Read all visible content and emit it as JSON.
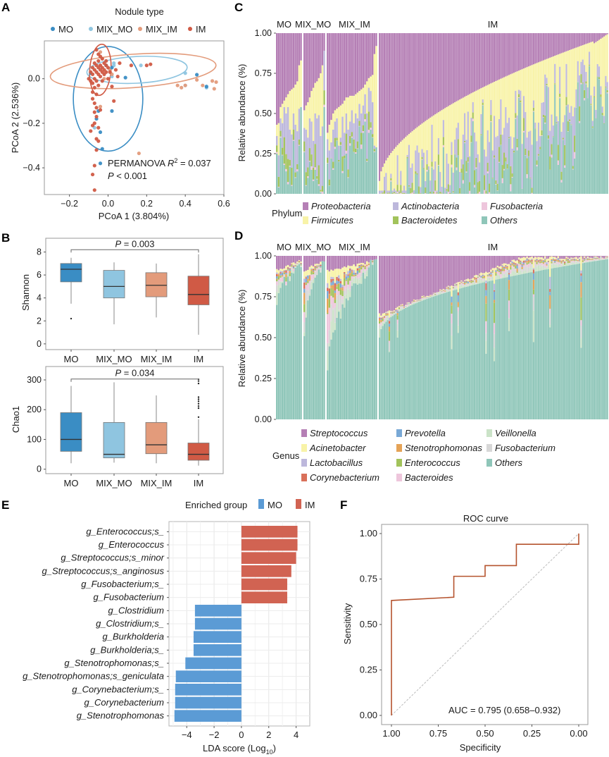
{
  "panel_letters": {
    "a": "A",
    "b": "B",
    "c": "C",
    "d": "D",
    "e": "E",
    "f": "F"
  },
  "colors": {
    "MO": "#3a8dc4",
    "MIX_MO": "#8fc5e0",
    "MIX_IM": "#e39b7b",
    "IM": "#d05a45",
    "enriched_MO": "#5b9bd5",
    "enriched_IM": "#d16352",
    "roc_line": "#b5532e"
  },
  "chart_data": [
    {
      "id": "A",
      "type": "scatter",
      "legend_title": "Nodule type",
      "legend": [
        "MO",
        "MIX_MO",
        "MIX_IM",
        "IM"
      ],
      "legend_placement": "top",
      "xlabel": "PCoA 1 (3.804%)",
      "ylabel": "PCoA 2 (2.536%)",
      "xlim": [
        -0.33,
        0.6
      ],
      "ylim": [
        -0.52,
        0.17
      ],
      "xticks": [
        -0.2,
        0.0,
        0.2,
        0.4,
        0.6
      ],
      "xtick_labels": [
        "−0.2",
        "0.0",
        "0.2",
        "0.4",
        "0.6"
      ],
      "yticks": [
        -0.4,
        -0.2,
        0.0
      ],
      "ytick_labels": [
        "−0.4",
        "−0.2",
        "0.0"
      ],
      "annotation_line1_prefix": "PERMANOVA ",
      "annotation_r": "R",
      "annotation_sup": "2",
      "annotation_line1_suffix": " = 0.037",
      "annotation_line2_p": "P",
      "annotation_line2_rest": " < 0.001",
      "ellipses": [
        {
          "group": "MO",
          "cx": 0.0,
          "cy": -0.09,
          "rx": 0.18,
          "ry": 0.235,
          "angle": 0
        },
        {
          "group": "MIX_MO",
          "cx": 0.15,
          "cy": 0.04,
          "rx": 0.26,
          "ry": 0.06,
          "angle": -3
        },
        {
          "group": "MIX_IM",
          "cx": 0.13,
          "cy": 0.035,
          "rx": 0.43,
          "ry": 0.075,
          "angle": -4
        },
        {
          "group": "IM",
          "cx": -0.04,
          "cy": 0.04,
          "rx": 0.055,
          "ry": 0.115,
          "angle": 4
        }
      ],
      "points": {
        "MO": [
          [
            -0.09,
            0.025
          ],
          [
            0.09,
            0.005
          ],
          [
            -0.05,
            -0.145
          ],
          [
            0.02,
            -0.145
          ],
          [
            -0.06,
            -0.18
          ],
          [
            -0.04,
            -0.24
          ],
          [
            -0.03,
            -0.315
          ],
          [
            -0.04,
            -0.38
          ],
          [
            0.46,
            0.018
          ],
          [
            0.51,
            -0.035
          ],
          [
            0.02,
            0.05
          ],
          [
            -0.01,
            0.06
          ]
        ],
        "MIX_MO": [
          [
            0.03,
            0.07
          ],
          [
            0.17,
            0.06
          ],
          [
            0.4,
            0.025
          ],
          [
            0.51,
            -0.04
          ],
          [
            -0.07,
            -0.22
          ],
          [
            0.02,
            0.01
          ],
          [
            0.03,
            0.06
          ],
          [
            0.4,
            -0.03
          ]
        ],
        "MIX_IM": [
          [
            0.36,
            -0.03
          ],
          [
            0.38,
            -0.04
          ],
          [
            0.4,
            -0.03
          ],
          [
            0.46,
            -0.005
          ],
          [
            0.49,
            -0.03
          ],
          [
            0.54,
            -0.01
          ],
          [
            0.55,
            -0.045
          ],
          [
            0.56,
            -0.015
          ],
          [
            0.16,
            -0.335
          ],
          [
            -0.04,
            -0.125
          ],
          [
            0.01,
            0.04
          ],
          [
            -0.03,
            0.09
          ],
          [
            -0.04,
            0.12
          ],
          [
            0.02,
            0.02
          ],
          [
            -0.02,
            0.0
          ]
        ],
        "IM": [
          [
            -0.06,
            0.13
          ],
          [
            -0.05,
            0.11
          ],
          [
            -0.04,
            0.1
          ],
          [
            -0.03,
            0.09
          ],
          [
            -0.05,
            0.08
          ],
          [
            -0.07,
            0.07
          ],
          [
            -0.02,
            0.07
          ],
          [
            -0.06,
            0.06
          ],
          [
            -0.04,
            0.06
          ],
          [
            -0.01,
            0.06
          ],
          [
            -0.08,
            0.05
          ],
          [
            -0.05,
            0.05
          ],
          [
            -0.03,
            0.05
          ],
          [
            0.0,
            0.05
          ],
          [
            -0.07,
            0.04
          ],
          [
            -0.04,
            0.04
          ],
          [
            -0.02,
            0.04
          ],
          [
            -0.09,
            0.03
          ],
          [
            -0.06,
            0.03
          ],
          [
            -0.03,
            0.03
          ],
          [
            -0.01,
            0.03
          ],
          [
            -0.08,
            0.02
          ],
          [
            -0.05,
            0.02
          ],
          [
            -0.02,
            0.02
          ],
          [
            -0.1,
            0.0
          ],
          [
            -0.07,
            0.0
          ],
          [
            -0.04,
            0.01
          ],
          [
            -0.09,
            -0.01
          ],
          [
            -0.06,
            -0.01
          ],
          [
            -0.03,
            -0.01
          ],
          [
            -0.08,
            -0.02
          ],
          [
            -0.05,
            -0.03
          ],
          [
            -0.07,
            -0.04
          ],
          [
            -0.08,
            -0.06
          ],
          [
            -0.06,
            -0.07
          ],
          [
            -0.08,
            -0.09
          ],
          [
            -0.07,
            -0.11
          ],
          [
            -0.06,
            -0.13
          ],
          [
            -0.07,
            -0.15
          ],
          [
            -0.06,
            -0.17
          ],
          [
            -0.07,
            -0.2
          ],
          [
            -0.08,
            -0.21
          ],
          [
            -0.05,
            -0.22
          ],
          [
            -0.09,
            -0.235
          ],
          [
            -0.06,
            -0.27
          ],
          [
            -0.05,
            -0.28
          ],
          [
            -0.06,
            -0.32
          ],
          [
            -0.07,
            -0.39
          ],
          [
            -0.08,
            -0.43
          ],
          [
            -0.07,
            -0.5
          ],
          [
            0.06,
            0.07
          ],
          [
            0.12,
            0.06
          ],
          [
            0.2,
            0.06
          ],
          [
            0.22,
            0.065
          ],
          [
            0.05,
            0.01
          ],
          [
            0.02,
            -0.035
          ],
          [
            0.03,
            -0.1
          ],
          [
            -0.04,
            -0.14
          ],
          [
            0.01,
            0.03
          ],
          [
            -0.01,
            0.08
          ],
          [
            0.04,
            0.04
          ],
          [
            0.0,
            0.0
          ]
        ]
      }
    },
    {
      "id": "B1",
      "type": "box",
      "categories": [
        "MO",
        "MIX_MO",
        "MIX_IM",
        "IM"
      ],
      "ylabel": "Shannon",
      "ylim": [
        -0.5,
        9.2
      ],
      "yticks": [
        0,
        2,
        4,
        6,
        8
      ],
      "boxes": [
        {
          "min": 3.5,
          "q1": 5.4,
          "median": 6.5,
          "q3": 7.0,
          "max": 7.5,
          "outliers": [
            2.2
          ]
        },
        {
          "min": 1.7,
          "q1": 4.0,
          "median": 5.0,
          "q3": 6.4,
          "max": 7.1,
          "outliers": []
        },
        {
          "min": 2.3,
          "q1": 4.1,
          "median": 5.1,
          "q3": 6.2,
          "max": 7.0,
          "outliers": []
        },
        {
          "min": 0.8,
          "q1": 3.4,
          "median": 4.3,
          "q3": 5.9,
          "max": 7.8,
          "outliers": []
        }
      ],
      "bracket": {
        "from": "MO",
        "to": "IM",
        "y": 8.2,
        "p_label": "P",
        "p_value": " = 0.003"
      }
    },
    {
      "id": "B2",
      "type": "box",
      "categories": [
        "MO",
        "MIX_MO",
        "MIX_IM",
        "IM"
      ],
      "ylabel": "Chao1",
      "ylim": [
        -15,
        345
      ],
      "yticks": [
        0,
        100,
        200,
        300
      ],
      "boxes": [
        {
          "min": 20,
          "q1": 60,
          "median": 100,
          "q3": 190,
          "max": 280,
          "outliers": []
        },
        {
          "min": 22,
          "q1": 38,
          "median": 50,
          "q3": 157,
          "max": 292,
          "outliers": []
        },
        {
          "min": 20,
          "q1": 52,
          "median": 82,
          "q3": 157,
          "max": 248,
          "outliers": []
        },
        {
          "min": 12,
          "q1": 30,
          "median": 50,
          "q3": 88,
          "max": 168,
          "outliers": [
            175,
            205,
            212,
            220,
            228,
            235,
            242,
            288,
            296,
            302
          ]
        }
      ],
      "bracket": {
        "from": "MO",
        "to": "IM",
        "y": 303,
        "p_label": "P",
        "p_value": " = 0.034"
      }
    },
    {
      "id": "C",
      "type": "bar",
      "stacked": true,
      "title_groups": [
        "MO",
        "MIX_MO",
        "MIX_IM",
        "IM"
      ],
      "ylabel": "Relative abundance (%)",
      "ylim": [
        0,
        1
      ],
      "yticks": [
        "0.00",
        "0.25",
        "0.50",
        "0.75",
        "1.00"
      ],
      "legend_title": "Phylum",
      "series_order": [
        "Others",
        "Fusobacteria",
        "Bacteroidetes",
        "Actinobacteria",
        "Firmicutes",
        "Proteobacteria"
      ],
      "legend": [
        {
          "name": "Proteobacteria",
          "color": "#b57fb5"
        },
        {
          "name": "Firmicutes",
          "color": "#f8f3a8"
        },
        {
          "name": "Actinobacteria",
          "color": "#bdb8dc"
        },
        {
          "name": "Bacteroidetes",
          "color": "#a2c35b"
        },
        {
          "name": "Fusobacteria",
          "color": "#eec6dc"
        },
        {
          "name": "Others",
          "color": "#8fc6b9"
        }
      ],
      "groups": [
        {
          "name": "MO",
          "proteo_start": [
            0.43,
            0.44,
            0.54,
            0.56,
            0.58,
            0.6,
            0.62,
            0.64,
            0.65,
            0.66,
            0.68,
            0.7,
            0.8,
            0.83
          ],
          "firm_start": [
            0.36,
            0.24,
            0.47,
            0.44,
            0.54,
            0.5,
            0.54,
            0.4,
            0.37,
            0.5,
            0.43,
            0.39,
            0.53,
            0.54
          ],
          "others": [
            0.25,
            0.04,
            0.35,
            0.24,
            0.18,
            0.14,
            0.06,
            0.17,
            0.05,
            0.33,
            0.1,
            0.14,
            0.3,
            0.54
          ]
        },
        {
          "name": "MIX_MO",
          "proteo_start": [
            0.52,
            0.55,
            0.57,
            0.6,
            0.64,
            0.66,
            0.69,
            0.7,
            0.72,
            0.75,
            0.8,
            0.89
          ],
          "firm_start": [
            0.41,
            0.4,
            0.35,
            0.47,
            0.45,
            0.33,
            0.5,
            0.47,
            0.49,
            0.36,
            0.42,
            0.89
          ],
          "others": [
            0.26,
            0.05,
            0.1,
            0.2,
            0.15,
            0.08,
            0.15,
            0.09,
            0.05,
            0.01,
            0.0,
            0.54
          ]
        },
        {
          "name": "MIX_IM",
          "proteo_start": [
            0.38,
            0.43,
            0.46,
            0.5,
            0.52,
            0.53,
            0.54,
            0.55,
            0.56,
            0.58,
            0.6,
            0.6,
            0.61,
            0.61,
            0.61,
            0.62,
            0.63,
            0.64,
            0.65,
            0.66,
            0.68,
            0.7,
            0.72,
            0.73,
            0.74,
            0.87,
            0.92
          ],
          "firm_start": [
            0.34,
            0.27,
            0.32,
            0.4,
            0.45,
            0.47,
            0.3,
            0.35,
            0.48,
            0.38,
            0.5,
            0.4,
            0.45,
            0.52,
            0.44,
            0.5,
            0.47,
            0.56,
            0.5,
            0.55,
            0.62,
            0.5,
            0.66,
            0.64,
            0.57,
            0.3,
            0.29
          ],
          "others": [
            0.19,
            0.05,
            0.22,
            0.15,
            0.28,
            0.33,
            0.2,
            0.3,
            0.13,
            0.22,
            0.25,
            0.1,
            0.3,
            0.35,
            0.26,
            0.25,
            0.28,
            0.42,
            0.28,
            0.38,
            0.45,
            0.2,
            0.38,
            0.4,
            0.35,
            0.26,
            0.29
          ]
        },
        {
          "name": "IM",
          "proteo_start_range": [
            0.08,
            1.0
          ],
          "n": 140
        }
      ]
    },
    {
      "id": "D",
      "type": "bar",
      "stacked": true,
      "title_groups": [
        "MO",
        "MIX_MO",
        "MIX_IM",
        "IM"
      ],
      "ylabel": "Relative abundance (%)",
      "ylim": [
        0,
        1
      ],
      "yticks": [
        "0.00",
        "0.25",
        "0.50",
        "0.75",
        "1.00"
      ],
      "legend_title": "Genus",
      "legend": [
        {
          "name": "Streptococcus",
          "color": "#b57fb5"
        },
        {
          "name": "Acinetobacter",
          "color": "#f8f3a8"
        },
        {
          "name": "Lactobacillus",
          "color": "#bdb8dc"
        },
        {
          "name": "Corynebacterium",
          "color": "#d9705a"
        },
        {
          "name": "Prevotella",
          "color": "#79a9d6"
        },
        {
          "name": "Stenotrophomonas",
          "color": "#e5a357"
        },
        {
          "name": "Enterococcus",
          "color": "#a2c35b"
        },
        {
          "name": "Bacteroides",
          "color": "#eec6dc"
        },
        {
          "name": "Veillonella",
          "color": "#cbe3c8"
        },
        {
          "name": "Fusobacterium",
          "color": "#d7d7d7"
        },
        {
          "name": "Others",
          "color": "#8fc6b9"
        }
      ],
      "groups": [
        {
          "name": "MO",
          "n": 14,
          "others_range": [
            0.7,
            0.95
          ]
        },
        {
          "name": "MIX_MO",
          "n": 12,
          "others_range": [
            0.51,
            0.98
          ]
        },
        {
          "name": "MIX_IM",
          "n": 27,
          "others_range": [
            0.3,
            0.98
          ]
        },
        {
          "name": "IM",
          "n": 140,
          "others_range": [
            0.34,
            1.0
          ]
        }
      ]
    },
    {
      "id": "E",
      "type": "bar",
      "orientation": "horizontal",
      "legend_title": "Enriched group",
      "legend": [
        {
          "name": "MO",
          "color": "#5b9bd5"
        },
        {
          "name": "IM",
          "color": "#d16352"
        }
      ],
      "xlabel_main": "LDA score (Log",
      "xlabel_sub": "10",
      "xlabel_end": ")",
      "xlim": [
        -5.3,
        5.0
      ],
      "xticks": [
        -4,
        -2,
        0,
        2,
        4
      ],
      "xtick_labels": [
        "−4",
        "−2",
        "0",
        "2",
        "4"
      ],
      "categories": [
        "g_Enterococcus;s_",
        "g_Enterococcus",
        "g_Streptococcus;s_minor",
        "g_Streptococcus;s_anginosus",
        "g_Fusobacterium;s_",
        "g_Fusobacterium",
        "g_Clostridium",
        "g_Clostridium;s_",
        "g_Burkholderia",
        "g_Burkholderia;s_",
        "g_Stenotrophomonas;s_",
        "g_Stenotrophomonas;s_geniculata",
        "g_Corynebacterium;s_",
        "g_Corynebacterium",
        "g_Stenotrophomonas"
      ],
      "values": [
        4.1,
        4.1,
        4.0,
        3.65,
        3.35,
        3.35,
        -3.4,
        -3.4,
        -3.5,
        -3.5,
        -4.1,
        -4.8,
        -4.85,
        -4.85,
        -4.9
      ],
      "groups": [
        "IM",
        "IM",
        "IM",
        "IM",
        "IM",
        "IM",
        "MO",
        "MO",
        "MO",
        "MO",
        "MO",
        "MO",
        "MO",
        "MO",
        "MO"
      ]
    },
    {
      "id": "F",
      "type": "line",
      "title": "ROC curve",
      "xlabel": "Specificity",
      "ylabel": "Sensitivity",
      "xlim": [
        1.05,
        -0.05
      ],
      "ylim": [
        -0.05,
        1.05
      ],
      "xticks": [
        "1.00",
        "0.75",
        "0.50",
        "0.25",
        "0.00"
      ],
      "yticks": [
        "0.00",
        "0.25",
        "0.50",
        "0.75",
        "1.00"
      ],
      "x": [
        1.0,
        1.0,
        0.667,
        0.667,
        0.5,
        0.5,
        0.333,
        0.333,
        0.0,
        0.0
      ],
      "y": [
        0.0,
        0.632,
        0.65,
        0.765,
        0.765,
        0.824,
        0.824,
        0.941,
        0.941,
        1.0
      ],
      "diagonal": true,
      "annotation": "AUC = 0.795 (0.658–0.932)"
    }
  ]
}
